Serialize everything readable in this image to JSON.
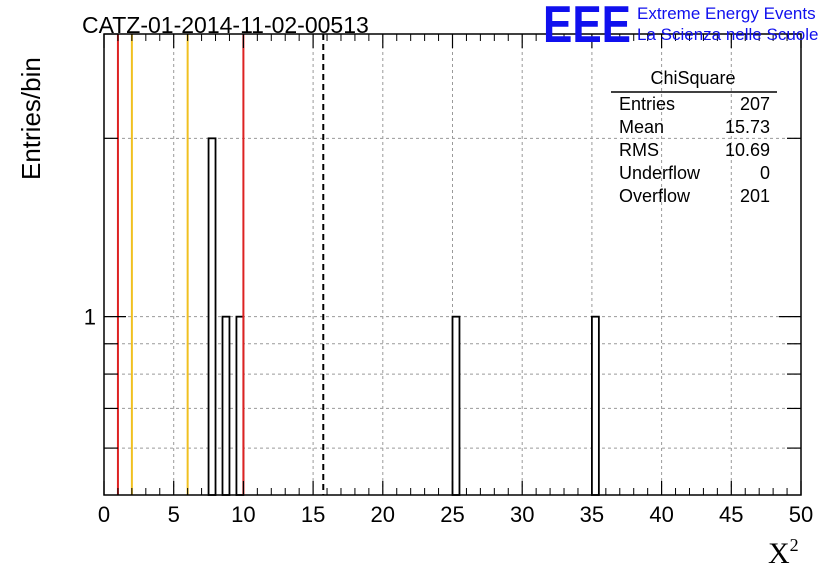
{
  "chart_data": {
    "type": "bar",
    "title": "CATZ-01-2014-11-02-00513",
    "xlabel": "X",
    "xlabel_superscript": "2",
    "ylabel": "Entries/bin",
    "xlim": [
      0,
      50
    ],
    "ylim": [
      0.5,
      3
    ],
    "y_scale": "log",
    "grid": true,
    "x_ticks": [
      "0",
      "5",
      "10",
      "15",
      "20",
      "25",
      "30",
      "35",
      "40",
      "45",
      "50"
    ],
    "y_tick_labels": [
      {
        "value": 1,
        "label": "1"
      }
    ],
    "bin_width": 0.5,
    "bins": [
      {
        "x": 7.5,
        "value": 2
      },
      {
        "x": 8.5,
        "value": 1
      },
      {
        "x": 9.5,
        "value": 1
      },
      {
        "x": 25.0,
        "value": 1
      },
      {
        "x": 35.0,
        "value": 1
      }
    ],
    "reference_lines": [
      {
        "x": 1,
        "color": "#dd2222",
        "style": "solid"
      },
      {
        "x": 2,
        "color": "#f0c020",
        "style": "solid"
      },
      {
        "x": 6,
        "color": "#f0c020",
        "style": "solid"
      },
      {
        "x": 10,
        "color": "#dd2222",
        "style": "solid"
      },
      {
        "x": 15.73,
        "color": "#000000",
        "style": "dashed"
      }
    ],
    "stats_box": {
      "title": "ChiSquare",
      "rows": [
        {
          "label": "Entries",
          "value": "207"
        },
        {
          "label": "Mean",
          "value": "15.73"
        },
        {
          "label": "RMS",
          "value": "10.69"
        },
        {
          "label": "Underflow",
          "value": "0"
        },
        {
          "label": "Overflow",
          "value": "201"
        }
      ]
    }
  },
  "logo": {
    "text": "EEE",
    "line1": "Extreme Energy Events",
    "line2": "La Scienza nelle Scuole",
    "color": "#1010ee"
  }
}
